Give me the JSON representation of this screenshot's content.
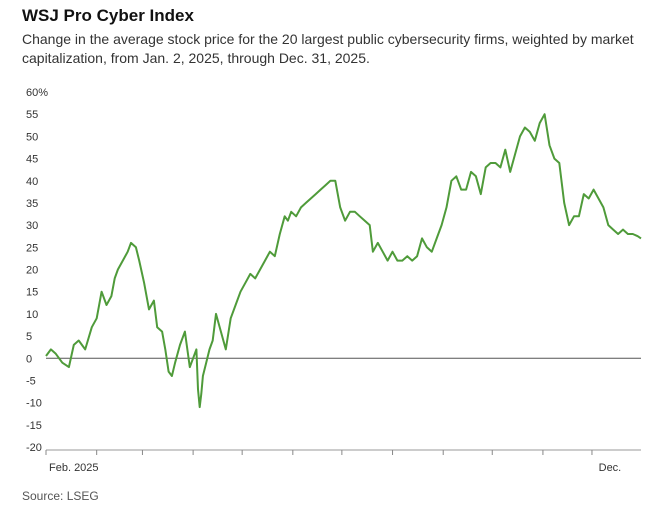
{
  "header": {
    "title": "WSJ Pro Cyber Index",
    "subtitle": "Change in the average stock price for the 20 largest public cybersecurity firms, weighted by market capitalization, from Jan. 2, 2025, through Dec. 31, 2025."
  },
  "footer": {
    "source": "Source: LSEG"
  },
  "chart_data": {
    "type": "line",
    "title": "WSJ Pro Cyber Index",
    "xlabel": "",
    "ylabel": "",
    "ylim": [
      -20,
      60
    ],
    "yticks": [
      -20,
      -15,
      -10,
      -5,
      0,
      5,
      10,
      15,
      20,
      25,
      30,
      35,
      40,
      45,
      50,
      55,
      60
    ],
    "ytick_labels": [
      "-20",
      "-15",
      "-10",
      "-5",
      "0",
      "5",
      "10",
      "15",
      "20",
      "25",
      "30",
      "35",
      "40",
      "45",
      "50",
      "55",
      "60%"
    ],
    "x_range": [
      0,
      364
    ],
    "month_ticks": [
      31,
      59,
      90,
      120,
      151,
      181,
      212,
      243,
      273,
      304,
      334
    ],
    "x_labels": [
      {
        "day": 17,
        "label": "Feb. 2025"
      },
      {
        "day": 345,
        "label": "Dec."
      }
    ],
    "grid": false,
    "zero_line": true,
    "line_color": "#4f9b3a",
    "series": [
      {
        "name": "WSJ Pro Cyber Index",
        "x": [
          0,
          3,
          6,
          10,
          14,
          17,
          20,
          24,
          28,
          31,
          34,
          37,
          40,
          42,
          44,
          47,
          50,
          52,
          55,
          57,
          60,
          63,
          66,
          68,
          71,
          73,
          75,
          77,
          79,
          82,
          85,
          88,
          90,
          92,
          93,
          94,
          95,
          96,
          98,
          100,
          102,
          104,
          107,
          110,
          113,
          116,
          119,
          122,
          125,
          128,
          131,
          134,
          137,
          140,
          143,
          146,
          148,
          150,
          153,
          156,
          159,
          162,
          165,
          168,
          171,
          174,
          177,
          180,
          183,
          186,
          189,
          192,
          195,
          198,
          200,
          203,
          206,
          209,
          212,
          215,
          218,
          221,
          224,
          227,
          230,
          233,
          236,
          239,
          242,
          245,
          248,
          251,
          254,
          257,
          260,
          263,
          266,
          269,
          272,
          275,
          278,
          281,
          284,
          287,
          290,
          293,
          296,
          299,
          302,
          305,
          308,
          311,
          314,
          317,
          320,
          323,
          326,
          329,
          332,
          335,
          338,
          341,
          344,
          347,
          350,
          353,
          356,
          359,
          362,
          364
        ],
        "values": [
          0.5,
          2,
          1,
          -1,
          -2,
          3,
          4,
          2,
          7,
          9,
          15,
          12,
          14,
          18,
          20,
          22,
          24,
          26,
          25,
          22,
          17,
          11,
          13,
          7,
          6,
          2,
          -3,
          -4,
          -1,
          3,
          6,
          -2,
          0,
          2,
          -7,
          -11,
          -8,
          -4,
          -1,
          2,
          4,
          10,
          6,
          2,
          9,
          12,
          15,
          17,
          19,
          18,
          20,
          22,
          24,
          23,
          28,
          32,
          31,
          33,
          32,
          34,
          35,
          36,
          37,
          38,
          39,
          40,
          40,
          34,
          31,
          33,
          33,
          32,
          31,
          30,
          24,
          26,
          24,
          22,
          24,
          22,
          22,
          23,
          22,
          23,
          27,
          25,
          24,
          27,
          30,
          34,
          40,
          41,
          38,
          38,
          42,
          41,
          37,
          43,
          44,
          44,
          43,
          47,
          42,
          46,
          50,
          52,
          51,
          49,
          53,
          55,
          48,
          45,
          44,
          35,
          30,
          32,
          32,
          37,
          36,
          38,
          36,
          34,
          30,
          29,
          28,
          29,
          28,
          28,
          27.5,
          27
        ]
      }
    ]
  }
}
